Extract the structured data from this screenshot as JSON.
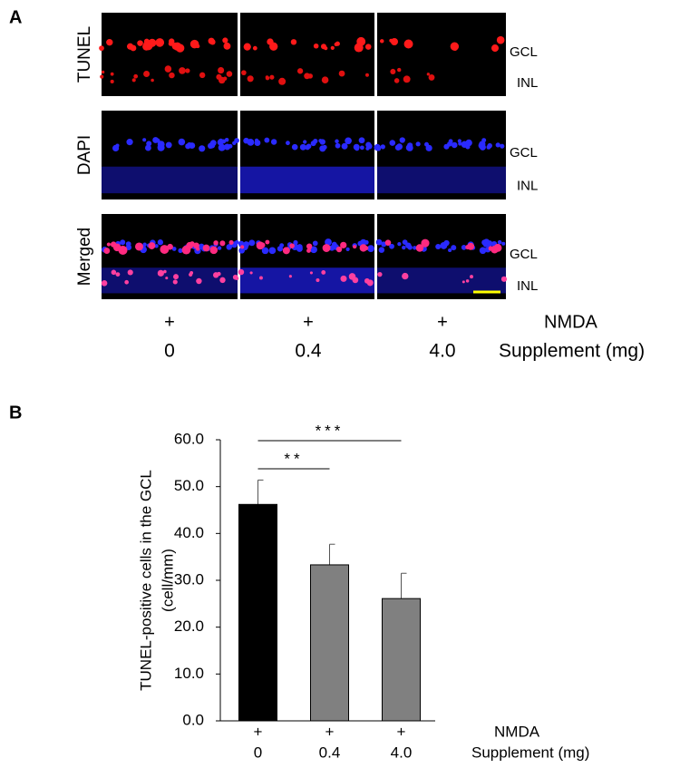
{
  "panel_a": {
    "label": "A",
    "rows": [
      "TUNEL",
      "DAPI",
      "Merged"
    ],
    "layers": [
      "GCL",
      "INL"
    ],
    "nmda": [
      "+",
      "+",
      "+"
    ],
    "nmda_label": "NMDA",
    "doses": [
      "0",
      "0.4",
      "4.0"
    ],
    "dose_label": "Supplement (mg)"
  },
  "chart_data": {
    "type": "bar",
    "panel_label": "B",
    "ylabel": [
      "TUNEL-positive cells  in the GCL",
      "(cell/mm)"
    ],
    "categories": [
      "0",
      "0.4",
      "4.0"
    ],
    "nmda": [
      "+",
      "+",
      "+"
    ],
    "nmda_label": "NMDA",
    "xlabel": "Supplement (mg)",
    "values": [
      46.2,
      33.3,
      26.1
    ],
    "errors": [
      5.2,
      4.4,
      5.4
    ],
    "colors": [
      "#000000",
      "#808080",
      "#808080"
    ],
    "ylim": [
      0,
      60
    ],
    "yticks": [
      {
        "value": 0,
        "label": "0.0"
      },
      {
        "value": 10,
        "label": "10.0"
      },
      {
        "value": 20,
        "label": "20.0"
      },
      {
        "value": 30,
        "label": "30.0"
      },
      {
        "value": 40,
        "label": "40.0"
      },
      {
        "value": 50,
        "label": "50.0"
      },
      {
        "value": 60,
        "label": "60.0"
      }
    ],
    "annotations": [
      {
        "text": "**",
        "from": 0,
        "to": 1
      },
      {
        "text": "***",
        "from": 0,
        "to": 2
      }
    ]
  }
}
